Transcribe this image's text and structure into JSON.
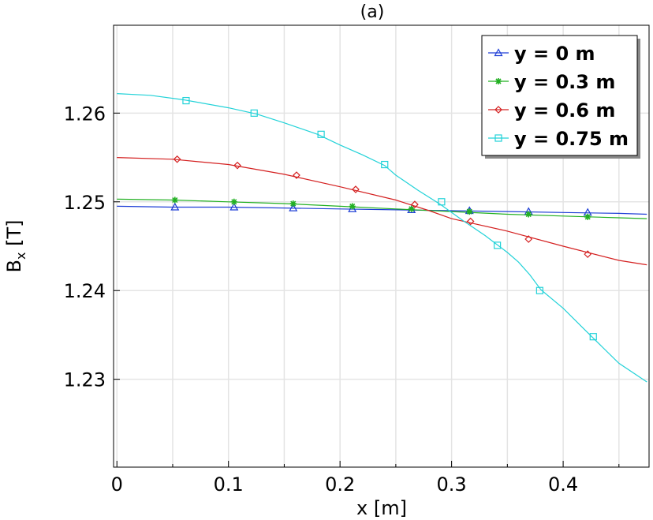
{
  "chart_data": {
    "type": "line",
    "title": "(a)",
    "xlabel": "x [m]",
    "ylabel_main": "B",
    "ylabel_sub": "x",
    "ylabel_unit": " [T]",
    "xlim": [
      -0.003,
      0.477
    ],
    "ylim": [
      1.2201,
      1.2699
    ],
    "xticks": [
      0,
      0.1,
      0.2,
      0.3,
      0.4
    ],
    "xtick_labels": [
      "0",
      "0.1",
      "0.2",
      "0.3",
      "0.4"
    ],
    "yticks": [
      1.23,
      1.24,
      1.25,
      1.26
    ],
    "ytick_labels": [
      "1.23",
      "1.24",
      "1.25",
      "1.26"
    ],
    "xgrid_minor": [
      0.05,
      0.15,
      0.25,
      0.35,
      0.45
    ],
    "grid": true,
    "legend_position": "top-right",
    "series": [
      {
        "name": "y = 0 m",
        "color": "#1f3fd6",
        "marker": "triangle",
        "x": [
          0,
          0.05,
          0.1,
          0.15,
          0.2,
          0.25,
          0.3,
          0.35,
          0.4,
          0.45,
          0.475
        ],
        "y": [
          1.2495,
          1.2494,
          1.2494,
          1.2493,
          1.2492,
          1.2491,
          1.249,
          1.2489,
          1.2488,
          1.2487,
          1.2486
        ],
        "marker_x": [
          0.052,
          0.105,
          0.158,
          0.211,
          0.264,
          0.316,
          0.369,
          0.422
        ],
        "marker_y": [
          1.2494,
          1.2494,
          1.2493,
          1.2492,
          1.2491,
          1.249,
          1.2489,
          1.2488
        ]
      },
      {
        "name": "y = 0.3 m",
        "color": "#22b022",
        "marker": "star",
        "x": [
          0,
          0.05,
          0.1,
          0.15,
          0.2,
          0.25,
          0.3,
          0.35,
          0.4,
          0.45,
          0.475
        ],
        "y": [
          1.2503,
          1.2502,
          1.25,
          1.2498,
          1.2495,
          1.2492,
          1.2489,
          1.2486,
          1.2484,
          1.2482,
          1.2481
        ],
        "marker_x": [
          0.052,
          0.105,
          0.158,
          0.211,
          0.264,
          0.316,
          0.369,
          0.422
        ],
        "marker_y": [
          1.2502,
          1.25,
          1.2498,
          1.2495,
          1.2492,
          1.2489,
          1.2486,
          1.2483
        ]
      },
      {
        "name": "y = 0.6 m",
        "color": "#d42020",
        "marker": "diamond",
        "x": [
          0,
          0.05,
          0.1,
          0.15,
          0.2,
          0.25,
          0.28,
          0.3,
          0.35,
          0.4,
          0.45,
          0.475
        ],
        "y": [
          1.255,
          1.2548,
          1.2542,
          1.2531,
          1.2517,
          1.2502,
          1.249,
          1.2481,
          1.2467,
          1.245,
          1.2434,
          1.2429
        ],
        "marker_x": [
          0.054,
          0.108,
          0.161,
          0.214,
          0.267,
          0.317,
          0.369,
          0.422
        ],
        "marker_y": [
          1.2548,
          1.2541,
          1.253,
          1.2514,
          1.2497,
          1.2478,
          1.2458,
          1.2441
        ]
      },
      {
        "name": "y = 0.75 m",
        "color": "#22d2d8",
        "marker": "square",
        "x": [
          0,
          0.03,
          0.06,
          0.1,
          0.125,
          0.15,
          0.18,
          0.2,
          0.22,
          0.24,
          0.25,
          0.27,
          0.29,
          0.31,
          0.33,
          0.35,
          0.36,
          0.37,
          0.38,
          0.4,
          0.42,
          0.45,
          0.475
        ],
        "y": [
          1.2622,
          1.262,
          1.2615,
          1.2606,
          1.2599,
          1.2589,
          1.2576,
          1.2564,
          1.2553,
          1.2541,
          1.253,
          1.2513,
          1.2497,
          1.2479,
          1.2462,
          1.2443,
          1.2432,
          1.2418,
          1.2401,
          1.238,
          1.2355,
          1.2318,
          1.2297
        ],
        "marker_x": [
          0.062,
          0.123,
          0.183,
          0.24,
          0.291,
          0.341,
          0.379,
          0.427
        ],
        "marker_y": [
          1.2614,
          1.26,
          1.2576,
          1.2542,
          1.25,
          1.2451,
          1.24,
          1.2348
        ]
      }
    ]
  }
}
